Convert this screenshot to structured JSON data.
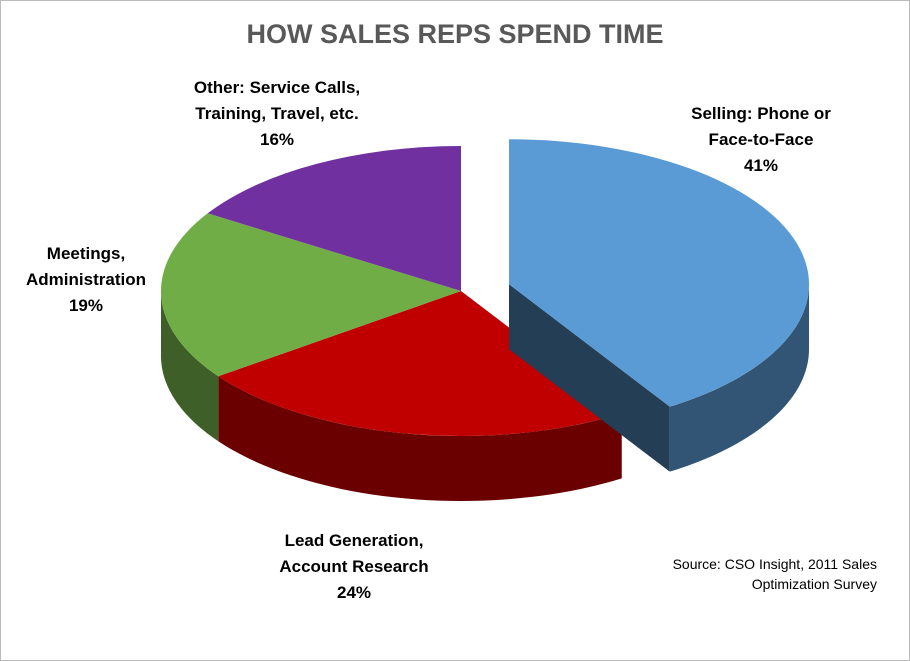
{
  "chart_data": {
    "type": "pie3d",
    "title": "HOW SALES REPS SPEND TIME",
    "categories": [
      "Selling: Phone or\nFace-to-Face",
      "Lead Generation,\nAccount Research",
      "Meetings,\nAdministration",
      "Other: Service Calls,\nTraining, Travel, etc."
    ],
    "values": [
      41,
      24,
      19,
      16
    ],
    "value_labels": [
      "41%",
      "24%",
      "19%",
      "16%"
    ],
    "colors": [
      "#5b9bd5",
      "#c00000",
      "#70ad47",
      "#7030a0"
    ],
    "source": "Source:  CSO Insight, 2011 Sales\nOptimization Survey"
  }
}
